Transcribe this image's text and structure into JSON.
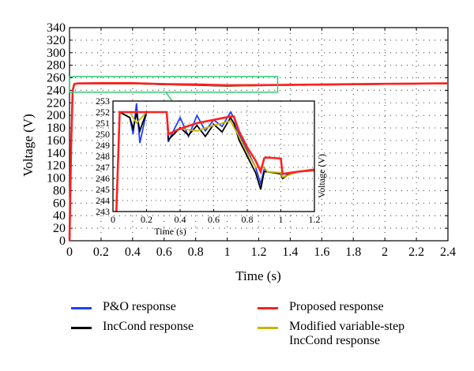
{
  "chart_data": [
    {
      "type": "line",
      "xlabel": "Time (s)",
      "ylabel": "Voltage (V)",
      "xlim": [
        0,
        2.4
      ],
      "ylim": [
        0,
        340
      ],
      "xticks": [
        "0",
        "0.2",
        "0.4",
        "0.6",
        "0.8",
        "1",
        "1.2",
        "1.4",
        "1.6",
        "1.8",
        "2",
        "2.2",
        "2.4"
      ],
      "yticks": [
        "0",
        "20",
        "40",
        "60",
        "80",
        "100",
        "120",
        "140",
        "160",
        "180",
        "200",
        "220",
        "240",
        "260",
        "280",
        "300",
        "320",
        "340"
      ],
      "grid": "dotted",
      "legend_position": "bottom",
      "zoom_box": {
        "x": [
          0,
          1.32
        ],
        "y": [
          237,
          262
        ],
        "color": "#2ecc71"
      },
      "series": [
        {
          "name": "P&O response",
          "color": "#1f3fff",
          "x": [
            0,
            0.01,
            0.02,
            0.03,
            0.05,
            0.2,
            0.4,
            0.6,
            0.8,
            1.0,
            1.2,
            1.6,
            2.0,
            2.4
          ],
          "y": [
            0,
            150,
            240,
            250,
            251,
            251,
            251,
            249.5,
            249,
            247.5,
            248,
            249,
            250,
            251
          ]
        },
        {
          "name": "IncCond response",
          "color": "#000000",
          "x": [
            0,
            0.01,
            0.02,
            0.03,
            0.05,
            0.2,
            0.4,
            0.6,
            0.8,
            1.0,
            1.2,
            1.6,
            2.0,
            2.4
          ],
          "y": [
            0,
            150,
            240,
            250,
            251,
            251,
            251,
            249.5,
            248.5,
            247,
            248,
            249,
            250,
            251
          ]
        },
        {
          "name": "Modified variable-step IncCond response",
          "color": "#c8b400",
          "x": [
            0,
            0.01,
            0.02,
            0.03,
            0.05,
            0.2,
            0.4,
            0.6,
            0.8,
            1.0,
            1.2,
            1.6,
            2.0,
            2.4
          ],
          "y": [
            0,
            150,
            240,
            250,
            251,
            251,
            251,
            249.8,
            249,
            247.5,
            248,
            249,
            250,
            251
          ]
        },
        {
          "name": "Proposed response",
          "color": "#ff2020",
          "x": [
            0,
            0.01,
            0.02,
            0.03,
            0.05,
            0.2,
            0.4,
            0.6,
            0.8,
            1.0,
            1.2,
            1.6,
            2.0,
            2.4
          ],
          "y": [
            0,
            150,
            240,
            250,
            251,
            251.5,
            251.5,
            250,
            249.5,
            248,
            248.3,
            249.3,
            250.3,
            251.2
          ]
        }
      ]
    },
    {
      "type": "line",
      "role": "inset",
      "xlabel": "Time (s)",
      "ylabel": "Voltage (V)",
      "xlim": [
        0,
        1.2
      ],
      "ylim": [
        243,
        253
      ],
      "xticks": [
        "0",
        "0.2",
        "0.4",
        "0.6",
        "0.8",
        "1",
        "1.2"
      ],
      "yticks": [
        "243",
        "244",
        "245",
        "246",
        "247",
        "248",
        "249",
        "250",
        "251",
        "252"
      ],
      "ytick_top": "253",
      "grid": "dotted",
      "series": [
        {
          "name": "P&O response",
          "color": "#1f3fff",
          "x": [
            0.02,
            0.04,
            0.1,
            0.12,
            0.14,
            0.16,
            0.2,
            0.32,
            0.33,
            0.35,
            0.4,
            0.45,
            0.5,
            0.55,
            0.6,
            0.65,
            0.7,
            0.72,
            0.75,
            0.8,
            0.85,
            0.88,
            0.9,
            0.92,
            1.0,
            1.01,
            1.05,
            1.1,
            1.2
          ],
          "y": [
            243,
            252,
            251.5,
            250,
            252.8,
            249.2,
            252,
            252,
            249.3,
            250,
            251.5,
            249.8,
            251.7,
            250.3,
            251.3,
            250.7,
            252,
            251.5,
            250,
            248.5,
            247,
            245.5,
            246.8,
            246.6,
            246.5,
            246,
            246.5,
            246.6,
            246.7
          ]
        },
        {
          "name": "IncCond response",
          "color": "#000000",
          "x": [
            0.02,
            0.04,
            0.1,
            0.12,
            0.14,
            0.16,
            0.2,
            0.32,
            0.33,
            0.35,
            0.4,
            0.45,
            0.5,
            0.55,
            0.6,
            0.65,
            0.7,
            0.72,
            0.75,
            0.8,
            0.85,
            0.88,
            0.9,
            0.92,
            1.0,
            1.01,
            1.05,
            1.1,
            1.2
          ],
          "y": [
            243,
            252,
            251.5,
            250.5,
            251.9,
            250.3,
            252,
            252,
            249.5,
            249.8,
            250.6,
            249.9,
            250.8,
            249.8,
            250.9,
            250.2,
            251.5,
            251,
            249.5,
            248,
            246.5,
            245,
            246.6,
            246.6,
            246.4,
            246,
            246.4,
            246.6,
            246.7
          ]
        },
        {
          "name": "Modified variable-step IncCond response",
          "color": "#c8b400",
          "x": [
            0.02,
            0.04,
            0.1,
            0.14,
            0.2,
            0.32,
            0.33,
            0.4,
            0.5,
            0.6,
            0.7,
            0.75,
            0.8,
            0.85,
            0.9,
            0.92,
            1.0,
            1.01,
            1.1,
            1.2
          ],
          "y": [
            243,
            252,
            252,
            251,
            252,
            252,
            250,
            250.5,
            250.3,
            250.8,
            251.2,
            249.8,
            248.3,
            247,
            247,
            246.6,
            246.5,
            246.1,
            246.6,
            246.7
          ]
        },
        {
          "name": "Proposed response",
          "color": "#ff2020",
          "x": [
            0.02,
            0.04,
            0.1,
            0.2,
            0.32,
            0.33,
            0.4,
            0.5,
            0.6,
            0.7,
            0.72,
            0.75,
            0.8,
            0.85,
            0.88,
            0.9,
            0.91,
            1.0,
            1.01,
            1.05,
            1.1,
            1.2
          ],
          "y": [
            243,
            252,
            252,
            252,
            252,
            250,
            250.5,
            251,
            251.3,
            251.6,
            251.6,
            250.3,
            248.8,
            247.6,
            246.6,
            247.8,
            247.9,
            247.8,
            246.4,
            246.5,
            246.6,
            246.8
          ]
        }
      ]
    }
  ]
}
